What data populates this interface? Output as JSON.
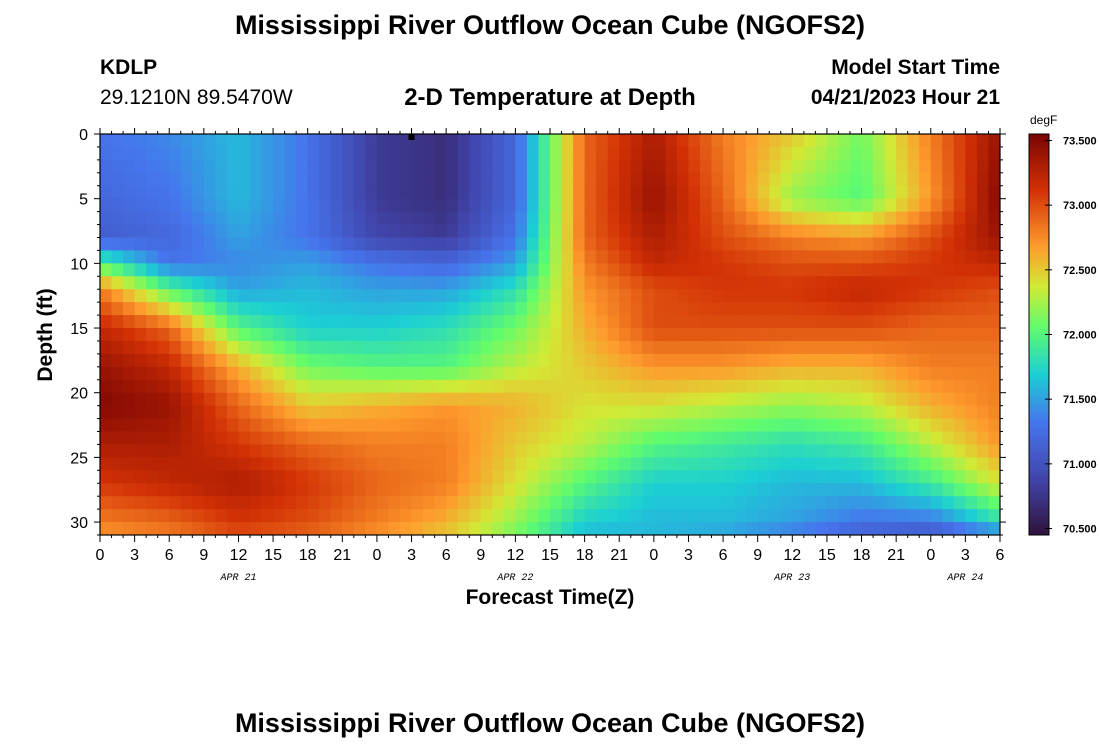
{
  "titles": {
    "top": "Mississippi River Outflow Ocean Cube (NGOFS2)",
    "bottom": "Mississippi River Outflow Ocean Cube (NGOFS2)"
  },
  "station": {
    "id": "KDLP",
    "coords": "29.1210N  89.5470W"
  },
  "model_start": {
    "label": "Model Start Time",
    "value": "04/21/2023 Hour 21"
  },
  "chart_data": {
    "type": "heatmap",
    "title": "2-D Temperature at Depth",
    "xlabel": "Forecast Time(Z)",
    "ylabel": "Depth (ft)",
    "x_ticks": [
      "0",
      "3",
      "6",
      "9",
      "12",
      "15",
      "18",
      "21",
      "0",
      "3",
      "6",
      "9",
      "12",
      "15",
      "18",
      "21",
      "0",
      "3",
      "6",
      "9",
      "12",
      "15",
      "18",
      "21",
      "0",
      "3",
      "6"
    ],
    "x_hours_range": [
      0,
      78
    ],
    "date_labels": [
      {
        "text": "APR 21",
        "hour": 12
      },
      {
        "text": "APR 22",
        "hour": 36
      },
      {
        "text": "APR 23",
        "hour": 60
      },
      {
        "text": "APR 24",
        "hour": 75
      }
    ],
    "y_ticks": [
      0,
      5,
      10,
      15,
      20,
      25,
      30
    ],
    "ylim": [
      0,
      31
    ],
    "y_inverted": true,
    "colorbar": {
      "unit": "degF",
      "ticks": [
        "70.500",
        "71.000",
        "71.500",
        "72.000",
        "72.500",
        "73.000",
        "73.500"
      ],
      "range": [
        70.45,
        73.55
      ]
    },
    "depths_ft": [
      0,
      5,
      8,
      10,
      12,
      15,
      18,
      21,
      24,
      27,
      30,
      31
    ],
    "hours": [
      0,
      6,
      12,
      18,
      24,
      30,
      36,
      42,
      48,
      54,
      60,
      66,
      72,
      78
    ],
    "values_degF": [
      [
        71.3,
        71.4,
        71.6,
        71.3,
        70.8,
        70.7,
        71.2,
        72.9,
        73.3,
        72.8,
        72.5,
        72.1,
        72.8,
        73.4
      ],
      [
        71.2,
        71.3,
        71.6,
        71.3,
        70.8,
        70.7,
        71.2,
        72.9,
        73.4,
        72.9,
        72.2,
        72.0,
        72.7,
        73.5
      ],
      [
        71.1,
        71.2,
        71.5,
        71.3,
        70.9,
        70.8,
        71.3,
        72.9,
        73.3,
        73.0,
        72.8,
        72.7,
        73.0,
        73.4
      ],
      [
        72.0,
        71.3,
        71.4,
        71.5,
        71.3,
        71.2,
        71.5,
        72.8,
        73.2,
        73.1,
        73.0,
        73.0,
        73.1,
        73.2
      ],
      [
        72.8,
        72.0,
        71.5,
        71.6,
        71.5,
        71.5,
        71.8,
        72.7,
        73.0,
        73.1,
        73.1,
        73.2,
        73.1,
        73.0
      ],
      [
        73.2,
        72.9,
        72.0,
        71.7,
        71.7,
        71.8,
        72.1,
        72.6,
        73.0,
        73.0,
        73.0,
        73.0,
        72.9,
        72.9
      ],
      [
        73.4,
        73.2,
        72.6,
        72.1,
        72.0,
        72.0,
        72.3,
        72.5,
        72.7,
        72.7,
        72.6,
        72.6,
        72.8,
        72.8
      ],
      [
        73.5,
        73.4,
        72.9,
        72.5,
        72.6,
        72.7,
        72.6,
        72.4,
        72.4,
        72.3,
        72.2,
        72.3,
        72.6,
        72.8
      ],
      [
        73.3,
        73.3,
        73.1,
        72.9,
        72.8,
        72.8,
        72.5,
        72.3,
        72.0,
        71.9,
        71.8,
        71.9,
        72.3,
        72.7
      ],
      [
        73.1,
        73.2,
        73.3,
        73.1,
        72.9,
        72.8,
        72.4,
        72.0,
        71.7,
        71.7,
        71.6,
        71.6,
        71.9,
        72.4
      ],
      [
        72.8,
        72.9,
        73.1,
        73.0,
        72.8,
        72.6,
        72.2,
        71.7,
        71.6,
        71.6,
        71.5,
        71.3,
        71.3,
        71.8
      ],
      [
        72.7,
        72.8,
        73.0,
        72.9,
        72.7,
        72.5,
        72.1,
        71.6,
        71.6,
        71.5,
        71.3,
        71.1,
        71.0,
        71.3
      ]
    ],
    "marker": {
      "hour": 27,
      "depth": 0
    }
  }
}
